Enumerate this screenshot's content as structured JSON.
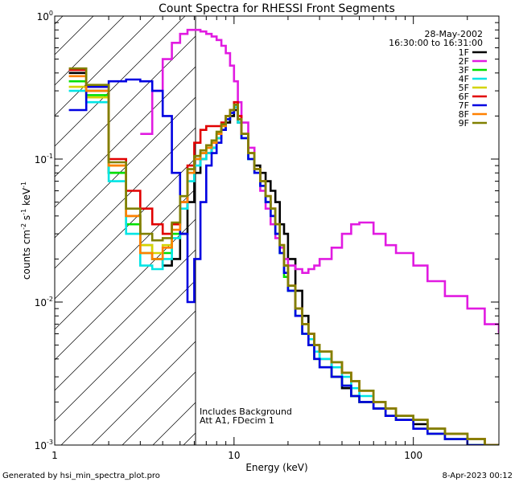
{
  "chart_data": {
    "type": "line",
    "title": "Count Spectra for RHESSI Front Segments",
    "xlabel": "Energy (keV)",
    "ylabel": "counts cm^-2 s^-1 keV^-1",
    "xscale": "log",
    "yscale": "log",
    "xlim": [
      1,
      300
    ],
    "ylim": [
      0.001,
      1
    ],
    "x_tick_labels": [
      "1",
      "10",
      "100"
    ],
    "y_tick_labels": [
      {
        "base": "10",
        "exp": "0",
        "value": 1
      },
      {
        "base": "10",
        "exp": "-1",
        "value": 0.1
      },
      {
        "base": "10",
        "exp": "-2",
        "value": 0.01
      },
      {
        "base": "10",
        "exp": "-3",
        "value": 0.001
      }
    ],
    "hatched_region": [
      1,
      6
    ],
    "date": "28-May-2002",
    "time_range": "16:30:00 to 16:31:00",
    "annotations": [
      "Includes Background",
      "Att A1, FDecim 1"
    ],
    "series": [
      {
        "name": "1F",
        "color": "#000000",
        "x": [
          1.2,
          1.5,
          2,
          2.5,
          3,
          3.5,
          4,
          4.5,
          5,
          5.5,
          6,
          6.5,
          7,
          7.5,
          8,
          8.5,
          9,
          9.5,
          10,
          10.5,
          11,
          12,
          13,
          14,
          15,
          16,
          17,
          18,
          19,
          20,
          22,
          24,
          26,
          28,
          30,
          35,
          40,
          45,
          50,
          60,
          70,
          80,
          100,
          120,
          150,
          200,
          250,
          300
        ],
        "y": [
          0.4,
          0.3,
          0.08,
          0.04,
          0.025,
          0.02,
          0.018,
          0.02,
          0.03,
          0.05,
          0.08,
          0.1,
          0.11,
          0.12,
          0.14,
          0.16,
          0.18,
          0.2,
          0.22,
          0.18,
          0.15,
          0.11,
          0.09,
          0.08,
          0.07,
          0.06,
          0.05,
          0.035,
          0.03,
          0.02,
          0.012,
          0.008,
          0.006,
          0.005,
          0.004,
          0.003,
          0.0025,
          0.0022,
          0.002,
          0.0018,
          0.0016,
          0.0015,
          0.0014,
          0.0013,
          0.0012,
          0.0011,
          0.001,
          0.001
        ]
      },
      {
        "name": "2F",
        "color": "#e11be1",
        "x": [
          1.2,
          1.5,
          2,
          2.5,
          3,
          3.5,
          4,
          4.5,
          5,
          5.5,
          6,
          6.5,
          7,
          7.5,
          8,
          8.5,
          9,
          9.5,
          10,
          10.5,
          11,
          12,
          13,
          14,
          15,
          16,
          17,
          18,
          19,
          20,
          22,
          24,
          26,
          28,
          30,
          35,
          40,
          45,
          50,
          60,
          70,
          80,
          100,
          120,
          150,
          200,
          250,
          300
        ],
        "y": [
          null,
          null,
          null,
          null,
          0.15,
          0.3,
          0.5,
          0.65,
          0.75,
          0.8,
          0.8,
          0.78,
          0.75,
          0.72,
          0.68,
          0.62,
          0.55,
          0.45,
          0.35,
          0.25,
          0.18,
          0.12,
          0.08,
          0.06,
          0.045,
          0.035,
          0.028,
          0.024,
          0.02,
          0.018,
          0.017,
          0.016,
          0.017,
          0.018,
          0.02,
          0.024,
          0.03,
          0.035,
          0.036,
          0.03,
          0.025,
          0.022,
          0.018,
          0.014,
          0.011,
          0.009,
          0.007,
          0.006
        ]
      },
      {
        "name": "3F",
        "color": "#00e000",
        "x": [
          1.2,
          1.5,
          2,
          2.5,
          3,
          3.5,
          4,
          4.5,
          5,
          5.5,
          6,
          6.5,
          7,
          7.5,
          8,
          8.5,
          9,
          9.5,
          10,
          10.5,
          11,
          12,
          13,
          14,
          15,
          16,
          17,
          18,
          19,
          20,
          22,
          24,
          26,
          28,
          30,
          35,
          40,
          45,
          50,
          60,
          70,
          80,
          100,
          120,
          150,
          200,
          250,
          300
        ],
        "y": [
          0.35,
          0.28,
          0.08,
          0.035,
          0.022,
          0.02,
          0.022,
          0.03,
          0.05,
          0.08,
          0.1,
          0.11,
          0.12,
          0.13,
          0.15,
          0.17,
          0.2,
          0.22,
          0.24,
          0.19,
          0.14,
          0.1,
          0.08,
          0.065,
          0.05,
          0.04,
          0.03,
          0.022,
          0.015,
          0.012,
          0.008,
          0.006,
          0.005,
          0.004,
          0.0035,
          0.003,
          0.0026,
          0.0022,
          0.002,
          0.0018,
          0.0016,
          0.0015,
          0.0013,
          0.0012,
          0.0011,
          0.001,
          0.001,
          0.001
        ]
      },
      {
        "name": "4F",
        "color": "#00e5e5",
        "x": [
          1.2,
          1.5,
          2,
          2.5,
          3,
          3.5,
          4,
          4.5,
          5,
          5.5,
          6,
          6.5,
          7,
          7.5,
          8,
          8.5,
          9,
          9.5,
          10,
          10.5,
          11,
          12,
          13,
          14,
          15,
          16,
          17,
          18,
          19,
          20,
          22,
          24,
          26,
          28,
          30,
          35,
          40,
          45,
          50,
          60,
          70,
          80,
          100,
          120,
          150,
          200,
          250,
          300
        ],
        "y": [
          0.3,
          0.25,
          0.07,
          0.03,
          0.018,
          0.017,
          0.02,
          0.028,
          0.045,
          0.07,
          0.09,
          0.1,
          0.11,
          0.12,
          0.14,
          0.16,
          0.19,
          0.21,
          0.23,
          0.18,
          0.14,
          0.1,
          0.08,
          0.065,
          0.05,
          0.04,
          0.03,
          0.022,
          0.016,
          0.012,
          0.008,
          0.006,
          0.0055,
          0.0045,
          0.004,
          0.0035,
          0.003,
          0.0025,
          0.0022,
          0.002,
          0.0018,
          0.0016,
          0.0015,
          0.0013,
          0.0012,
          0.0011,
          0.001,
          0.001
        ]
      },
      {
        "name": "5F",
        "color": "#d4d400",
        "x": [
          1.2,
          1.5,
          2,
          2.5,
          3,
          3.5,
          4,
          4.5,
          5,
          5.5,
          6,
          6.5,
          7,
          7.5,
          8,
          8.5,
          9,
          9.5,
          10,
          10.5,
          11,
          12,
          13,
          14,
          15,
          16,
          17,
          18,
          19,
          20,
          22,
          24,
          26,
          28,
          30,
          35,
          40,
          45,
          50,
          60,
          70,
          80,
          100,
          120,
          150,
          200,
          250,
          300
        ],
        "y": [
          0.32,
          0.27,
          0.09,
          0.04,
          0.025,
          0.022,
          0.025,
          0.035,
          0.055,
          0.085,
          0.105,
          0.115,
          0.125,
          0.135,
          0.155,
          0.175,
          0.2,
          0.22,
          0.24,
          0.19,
          0.15,
          0.11,
          0.085,
          0.07,
          0.055,
          0.045,
          0.035,
          0.025,
          0.018,
          0.013,
          0.009,
          0.007,
          0.006,
          0.005,
          0.0045,
          0.0038,
          0.0032,
          0.0028,
          0.0024,
          0.002,
          0.0018,
          0.0016,
          0.0015,
          0.0013,
          0.0012,
          0.0011,
          0.001,
          0.001
        ]
      },
      {
        "name": "6F",
        "color": "#e10000",
        "x": [
          1.2,
          1.5,
          2,
          2.5,
          3,
          3.5,
          4,
          4.5,
          5,
          5.5,
          6,
          6.5,
          7,
          7.5,
          8,
          8.5,
          9,
          9.5,
          10,
          10.5,
          11,
          12,
          13,
          14,
          15,
          16,
          17,
          18,
          19,
          20,
          22,
          24,
          26,
          28,
          30,
          35,
          40,
          45,
          50,
          60,
          70,
          80,
          100,
          120,
          150,
          200,
          250,
          300
        ],
        "y": [
          0.42,
          0.32,
          0.1,
          0.06,
          0.045,
          0.035,
          0.03,
          0.035,
          0.05,
          0.09,
          0.13,
          0.16,
          0.17,
          0.17,
          0.17,
          0.18,
          0.2,
          0.22,
          0.25,
          0.2,
          0.15,
          0.11,
          0.085,
          0.07,
          0.055,
          0.045,
          0.035,
          0.025,
          0.018,
          0.013,
          0.009,
          0.007,
          0.006,
          0.005,
          0.0045,
          0.0038,
          0.0032,
          0.0028,
          0.0024,
          0.002,
          0.0018,
          0.0016,
          0.0015,
          0.0013,
          0.0012,
          0.0011,
          0.001,
          0.001
        ]
      },
      {
        "name": "7F",
        "color": "#0000e1",
        "x": [
          1.2,
          1.5,
          2,
          2.5,
          3,
          3.5,
          4,
          4.5,
          5,
          5.5,
          6,
          6.5,
          7,
          7.5,
          8,
          8.5,
          9,
          9.5,
          10,
          10.5,
          11,
          12,
          13,
          14,
          15,
          16,
          17,
          18,
          19,
          20,
          22,
          24,
          26,
          28,
          30,
          35,
          40,
          45,
          50,
          60,
          70,
          80,
          100,
          120,
          150,
          200,
          250,
          300
        ],
        "y": [
          0.22,
          0.32,
          0.35,
          0.36,
          0.35,
          0.3,
          0.2,
          0.08,
          0.03,
          0.01,
          0.02,
          0.05,
          0.09,
          0.11,
          0.13,
          0.16,
          0.19,
          0.21,
          0.24,
          0.19,
          0.14,
          0.1,
          0.08,
          0.065,
          0.05,
          0.04,
          0.03,
          0.022,
          0.016,
          0.012,
          0.008,
          0.006,
          0.005,
          0.004,
          0.0035,
          0.003,
          0.0026,
          0.0022,
          0.002,
          0.0018,
          0.0016,
          0.0015,
          0.0013,
          0.0012,
          0.0011,
          0.001,
          0.001,
          0.001
        ]
      },
      {
        "name": "8F",
        "color": "#ff8000",
        "x": [
          1.2,
          1.5,
          2,
          2.5,
          3,
          3.5,
          4,
          4.5,
          5,
          5.5,
          6,
          6.5,
          7,
          7.5,
          8,
          8.5,
          9,
          9.5,
          10,
          10.5,
          11,
          12,
          13,
          14,
          15,
          16,
          17,
          18,
          19,
          20,
          22,
          24,
          26,
          28,
          30,
          35,
          40,
          45,
          50,
          60,
          70,
          80,
          100,
          120,
          150,
          200,
          250,
          300
        ],
        "y": [
          0.38,
          0.3,
          0.09,
          0.04,
          0.022,
          0.02,
          0.024,
          0.032,
          0.05,
          0.08,
          0.1,
          0.11,
          0.12,
          0.13,
          0.15,
          0.17,
          0.2,
          0.22,
          0.24,
          0.19,
          0.15,
          0.11,
          0.085,
          0.07,
          0.055,
          0.045,
          0.035,
          0.025,
          0.018,
          0.013,
          0.009,
          0.007,
          0.006,
          0.005,
          0.0045,
          0.0038,
          0.0032,
          0.0028,
          0.0024,
          0.002,
          0.0018,
          0.0016,
          0.0015,
          0.0013,
          0.0012,
          0.0011,
          0.001,
          0.001
        ]
      },
      {
        "name": "9F",
        "color": "#808000",
        "x": [
          1.2,
          1.5,
          2,
          2.5,
          3,
          3.5,
          4,
          4.5,
          5,
          5.5,
          6,
          6.5,
          7,
          7.5,
          8,
          8.5,
          9,
          9.5,
          10,
          10.5,
          11,
          12,
          13,
          14,
          15,
          16,
          17,
          18,
          19,
          20,
          22,
          24,
          26,
          28,
          30,
          35,
          40,
          45,
          50,
          60,
          70,
          80,
          100,
          120,
          150,
          200,
          250,
          300
        ],
        "y": [
          0.43,
          0.33,
          0.095,
          0.045,
          0.03,
          0.027,
          0.028,
          0.036,
          0.055,
          0.085,
          0.105,
          0.115,
          0.125,
          0.135,
          0.155,
          0.175,
          0.2,
          0.22,
          0.24,
          0.19,
          0.15,
          0.11,
          0.085,
          0.07,
          0.055,
          0.045,
          0.035,
          0.025,
          0.018,
          0.013,
          0.009,
          0.007,
          0.006,
          0.005,
          0.0045,
          0.0038,
          0.0032,
          0.0028,
          0.0024,
          0.002,
          0.0018,
          0.0016,
          0.0015,
          0.0013,
          0.0012,
          0.0011,
          0.001,
          0.001
        ]
      }
    ]
  },
  "footer": {
    "left": "Generated by hsi_min_spectra_plot.pro",
    "right": "8-Apr-2023 00:12"
  }
}
